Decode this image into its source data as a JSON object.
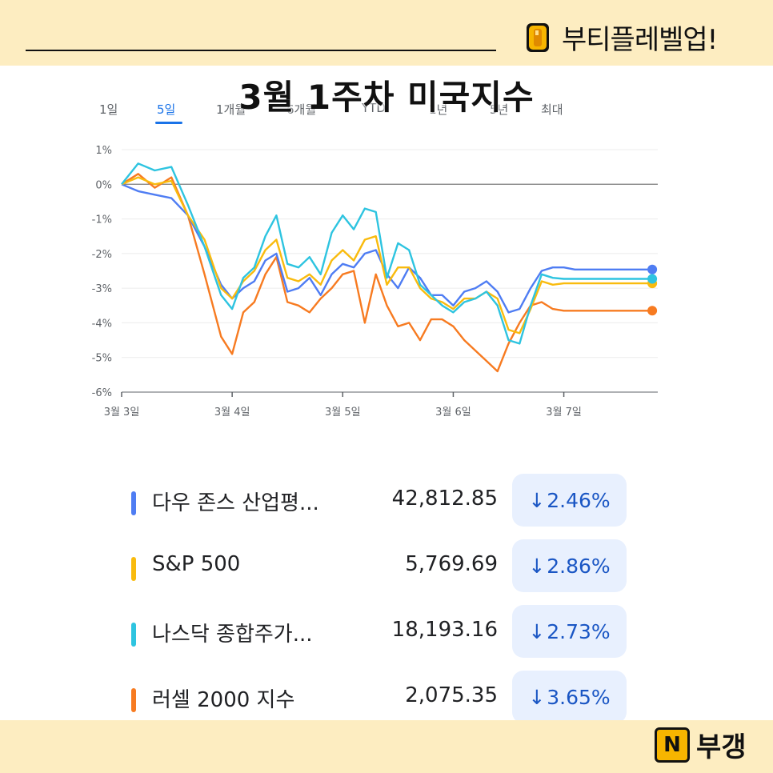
{
  "header": {
    "brand": "부티플레벨업!",
    "title": "3월 1주차 미국지수"
  },
  "tabs": [
    "1일",
    "5일",
    "1개월",
    "6개월",
    "YTD",
    "1년",
    "5년",
    "최대"
  ],
  "active_tab": "5일",
  "footer": {
    "logo_letter": "N",
    "logo_text": "부갱"
  },
  "colors": {
    "dow": "#4f7df3",
    "sp500": "#f9bb0e",
    "nasdaq": "#2ec4e0",
    "russell": "#f77b21",
    "band": "#fdedc1",
    "chip_bg": "#e8f0fe",
    "chip_text": "#1a56c4"
  },
  "indices": [
    {
      "name": "다우 존스 산업평...",
      "value": "42,812.85",
      "change": "2.46%",
      "color_key": "dow"
    },
    {
      "name": "S&P 500",
      "value": "5,769.69",
      "change": "2.86%",
      "color_key": "sp500"
    },
    {
      "name": "나스닥 종합주가...",
      "value": "18,193.16",
      "change": "2.73%",
      "color_key": "nasdaq"
    },
    {
      "name": "러셀 2000 지수",
      "value": "2,075.35",
      "change": "3.65%",
      "color_key": "russell"
    }
  ],
  "chart_data": {
    "type": "line",
    "ylabel": "",
    "xlabel": "",
    "y_ticks": [
      "1%",
      "0%",
      "-1%",
      "-2%",
      "-3%",
      "-4%",
      "-5%",
      "-6%"
    ],
    "ylim": [
      -6,
      1
    ],
    "x_tick_labels": [
      "3월 3일",
      "3월 4일",
      "3월 5일",
      "3월 6일",
      "3월 7일"
    ],
    "x": [
      0,
      0.15,
      0.3,
      0.45,
      0.6,
      0.75,
      0.9,
      1.0,
      1.1,
      1.2,
      1.3,
      1.4,
      1.5,
      1.6,
      1.7,
      1.8,
      1.9,
      2.0,
      2.1,
      2.2,
      2.3,
      2.4,
      2.5,
      2.6,
      2.7,
      2.8,
      2.9,
      3.0,
      3.1,
      3.2,
      3.3,
      3.4,
      3.5,
      3.6,
      3.7,
      3.8,
      3.9,
      4.0,
      4.1,
      4.2,
      4.3,
      4.4,
      4.5,
      4.6,
      4.7,
      4.8
    ],
    "series": [
      {
        "name": "다우 존스 산업평...",
        "color_key": "dow",
        "values": [
          0,
          -0.2,
          -0.3,
          -0.4,
          -0.9,
          -1.8,
          -2.9,
          -3.3,
          -3.0,
          -2.8,
          -2.2,
          -2.0,
          -3.1,
          -3.0,
          -2.7,
          -3.2,
          -2.6,
          -2.3,
          -2.4,
          -2.0,
          -1.9,
          -2.6,
          -3.0,
          -2.4,
          -2.7,
          -3.2,
          -3.2,
          -3.5,
          -3.1,
          -3.0,
          -2.8,
          -3.1,
          -3.7,
          -3.6,
          -3.0,
          -2.5,
          -2.4,
          -2.4,
          -2.46,
          -2.46,
          -2.46,
          -2.46,
          -2.46,
          -2.46,
          -2.46,
          -2.46
        ]
      },
      {
        "name": "S&P 500",
        "color_key": "sp500",
        "values": [
          0,
          0.2,
          0,
          0.1,
          -0.9,
          -1.6,
          -3.0,
          -3.3,
          -2.8,
          -2.5,
          -1.9,
          -1.6,
          -2.7,
          -2.8,
          -2.6,
          -2.9,
          -2.2,
          -1.9,
          -2.2,
          -1.6,
          -1.5,
          -2.9,
          -2.4,
          -2.4,
          -3.0,
          -3.3,
          -3.4,
          -3.6,
          -3.3,
          -3.3,
          -3.1,
          -3.3,
          -4.2,
          -4.3,
          -3.6,
          -2.8,
          -2.9,
          -2.86,
          -2.86,
          -2.86,
          -2.86,
          -2.86,
          -2.86,
          -2.86,
          -2.86,
          -2.86
        ]
      },
      {
        "name": "나스닥 종합주가...",
        "color_key": "nasdaq",
        "values": [
          0,
          0.6,
          0.4,
          0.5,
          -0.6,
          -1.8,
          -3.2,
          -3.6,
          -2.7,
          -2.4,
          -1.5,
          -0.9,
          -2.3,
          -2.4,
          -2.1,
          -2.6,
          -1.4,
          -0.9,
          -1.3,
          -0.7,
          -0.8,
          -2.7,
          -1.7,
          -1.9,
          -2.9,
          -3.2,
          -3.5,
          -3.7,
          -3.4,
          -3.3,
          -3.1,
          -3.5,
          -4.5,
          -4.6,
          -3.5,
          -2.6,
          -2.7,
          -2.73,
          -2.73,
          -2.73,
          -2.73,
          -2.73,
          -2.73,
          -2.73,
          -2.73,
          -2.73
        ]
      },
      {
        "name": "러셀 2000 지수",
        "color_key": "russell",
        "values": [
          0,
          0.3,
          -0.1,
          0.2,
          -0.9,
          -2.6,
          -4.4,
          -4.9,
          -3.7,
          -3.4,
          -2.6,
          -2.1,
          -3.4,
          -3.5,
          -3.7,
          -3.3,
          -3.0,
          -2.6,
          -2.5,
          -4.0,
          -2.6,
          -3.5,
          -4.1,
          -4.0,
          -4.5,
          -3.9,
          -3.9,
          -4.1,
          -4.5,
          -4.8,
          -5.1,
          -5.4,
          -4.6,
          -4.0,
          -3.5,
          -3.4,
          -3.6,
          -3.65,
          -3.65,
          -3.65,
          -3.65,
          -3.65,
          -3.65,
          -3.65,
          -3.65,
          -3.65
        ]
      }
    ]
  }
}
